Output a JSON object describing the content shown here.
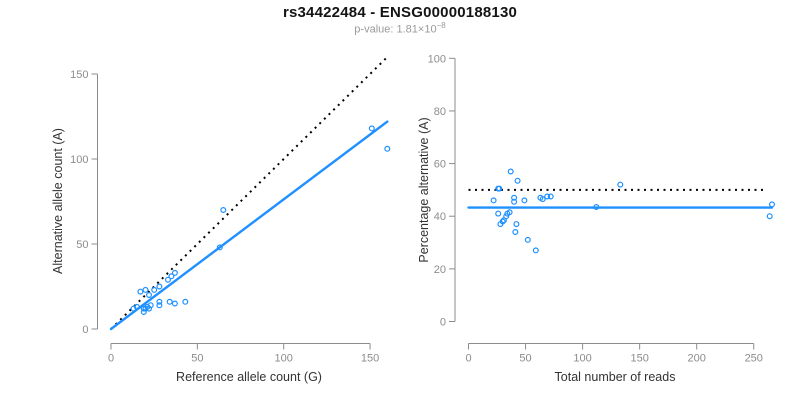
{
  "header": {
    "title": "rs34422484 - ENSG00000188130",
    "subtitle_prefix": "p-value: 1.81×10",
    "subtitle_exponent": "−8"
  },
  "colors": {
    "accent_blue": "#1E90FF",
    "dotted_black": "#000000",
    "axis_gray": "#8c8c8c"
  },
  "chart_data": [
    {
      "type": "scatter",
      "xlabel": "Reference allele count (G)",
      "ylabel": "Alternative allele count (A)",
      "xticks": [
        0,
        50,
        100,
        150
      ],
      "yticks": [
        0,
        50,
        100,
        150
      ],
      "xlim": [
        0,
        165
      ],
      "ylim": [
        0,
        160
      ],
      "marker_color": "#1E90FF",
      "points": [
        [
          13,
          12
        ],
        [
          15,
          13
        ],
        [
          17,
          22
        ],
        [
          20,
          23
        ],
        [
          22,
          20
        ],
        [
          25,
          23
        ],
        [
          28,
          25
        ],
        [
          19,
          10
        ],
        [
          19,
          12
        ],
        [
          20,
          12
        ],
        [
          21,
          13
        ],
        [
          22,
          12
        ],
        [
          23,
          14
        ],
        [
          28,
          14
        ],
        [
          28,
          16
        ],
        [
          34,
          16
        ],
        [
          37,
          15
        ],
        [
          43,
          16
        ],
        [
          33,
          29
        ],
        [
          35,
          31
        ],
        [
          37,
          33
        ],
        [
          63,
          48
        ],
        [
          65,
          70
        ],
        [
          151,
          118
        ],
        [
          160,
          106
        ]
      ],
      "lines": [
        {
          "name": "identity-line",
          "style": "dotted",
          "color": "#000000",
          "x1": 0,
          "y1": 0,
          "x2": 160,
          "y2": 160
        },
        {
          "name": "fit-line",
          "style": "solid",
          "color": "#1E90FF",
          "x1": 0,
          "y1": 0,
          "x2": 160,
          "y2": 122
        }
      ]
    },
    {
      "type": "scatter",
      "xlabel": "Total number of reads",
      "ylabel": "Percentage alternative (A)",
      "xticks": [
        0,
        50,
        100,
        150,
        200,
        250
      ],
      "yticks": [
        0,
        20,
        40,
        60,
        80,
        100
      ],
      "xlim": [
        0,
        270
      ],
      "ylim": [
        0,
        100
      ],
      "marker_color": "#1E90FF",
      "points": [
        [
          22,
          46
        ],
        [
          26,
          50.5
        ],
        [
          27,
          50.5
        ],
        [
          37,
          57
        ],
        [
          43,
          53.5
        ],
        [
          40,
          47
        ],
        [
          40,
          45.5
        ],
        [
          49,
          46
        ],
        [
          63,
          47
        ],
        [
          65,
          46.5
        ],
        [
          69,
          47.5
        ],
        [
          72,
          47.5
        ],
        [
          26,
          41
        ],
        [
          33,
          40
        ],
        [
          34,
          41
        ],
        [
          36,
          41.5
        ],
        [
          28,
          37
        ],
        [
          30,
          38
        ],
        [
          31,
          38.5
        ],
        [
          42,
          37
        ],
        [
          41,
          34
        ],
        [
          52,
          31
        ],
        [
          59,
          27
        ],
        [
          112,
          43.5
        ],
        [
          133,
          52
        ],
        [
          264,
          40
        ],
        [
          266,
          44.5
        ]
      ],
      "lines": [
        {
          "name": "expected-ratio-line",
          "style": "dotted",
          "color": "#000000",
          "x1": 0,
          "y1": 50,
          "x2": 262,
          "y2": 50
        },
        {
          "name": "observed-ratio-line",
          "style": "solid",
          "color": "#1E90FF",
          "x1": 0,
          "y1": 43.3,
          "x2": 266,
          "y2": 43.3
        }
      ]
    }
  ]
}
